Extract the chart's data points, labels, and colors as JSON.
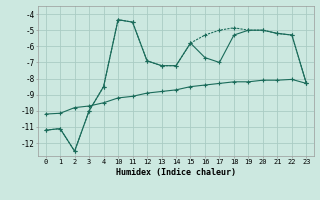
{
  "xlabel": "Humidex (Indice chaleur)",
  "bg_color": "#cce8e0",
  "grid_color": "#aaccC4",
  "line_color": "#1a6b5a",
  "xlim": [
    -0.5,
    23.5
  ],
  "ylim": [
    -12.8,
    -3.5
  ],
  "xticks": [
    0,
    1,
    2,
    3,
    4,
    10,
    11,
    12,
    13,
    14,
    15,
    16,
    17,
    18,
    19,
    20,
    21,
    22,
    23
  ],
  "yticks": [
    -12,
    -11,
    -10,
    -9,
    -8,
    -7,
    -6,
    -5,
    -4
  ],
  "line1_x": [
    0,
    1,
    2,
    3,
    4,
    10,
    11,
    12,
    13,
    14,
    15,
    16,
    17,
    18,
    19,
    20,
    21,
    22,
    23
  ],
  "line1_y": [
    -11.2,
    -11.1,
    -12.5,
    -10.0,
    -8.5,
    -4.35,
    -4.5,
    -6.9,
    -7.2,
    -7.2,
    -5.8,
    -5.3,
    -5.0,
    -4.85,
    -5.0,
    -5.0,
    -5.2,
    -5.3,
    -8.3
  ],
  "line2_x": [
    0,
    1,
    2,
    3,
    4,
    10,
    11,
    12,
    13,
    14,
    15,
    16,
    17,
    18,
    19,
    20,
    21,
    22,
    23
  ],
  "line2_y": [
    -11.2,
    -11.1,
    -12.5,
    -10.0,
    -8.5,
    -4.35,
    -4.5,
    -6.9,
    -7.2,
    -7.2,
    -5.8,
    -6.7,
    -7.0,
    -5.3,
    -5.0,
    -5.0,
    -5.2,
    -5.3,
    -8.3
  ],
  "line3_x": [
    0,
    1,
    2,
    3,
    4,
    10,
    11,
    12,
    13,
    14,
    15,
    16,
    17,
    18,
    19,
    20,
    21,
    22,
    23
  ],
  "line3_y": [
    -10.2,
    -10.15,
    -9.8,
    -9.7,
    -9.5,
    -9.2,
    -9.1,
    -8.9,
    -8.8,
    -8.7,
    -8.5,
    -8.4,
    -8.3,
    -8.2,
    -8.2,
    -8.1,
    -8.1,
    -8.05,
    -8.3
  ]
}
